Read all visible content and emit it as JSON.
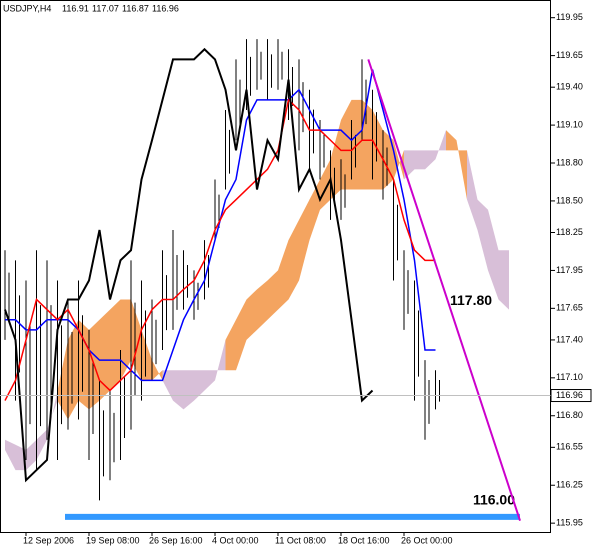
{
  "chart_data": {
    "type": "ichimoku",
    "symbol": "USDJPY,H4",
    "ohlc": [
      116.91,
      117.07,
      116.87,
      116.96
    ],
    "last": 116.96,
    "ylim": [
      115.88,
      120.09
    ],
    "yticks": [
      119.95,
      119.65,
      {
        "value": 119.4,
        "label": "119.40"
      },
      {
        "value": 119.1,
        "label": "119.10"
      },
      {
        "value": 118.8,
        "label": "118.80"
      },
      {
        "value": 118.5,
        "label": "118.50"
      },
      118.25,
      117.95,
      117.65,
      {
        "value": 117.4,
        "label": "117.40"
      },
      {
        "value": 117.1,
        "label": "117.10"
      },
      {
        "value": 116.8,
        "label": "116.80"
      },
      116.55,
      116.25,
      115.95
    ],
    "categories": [
      null,
      null,
      "12 Sep 2006",
      null,
      null,
      null,
      null,
      null,
      "19 Sep 08:00",
      null,
      null,
      null,
      null,
      null,
      "26 Sep 16:00",
      null,
      null,
      null,
      null,
      null,
      "4 Oct 00:00",
      null,
      null,
      null,
      null,
      null,
      "11 Oct 08:00",
      null,
      null,
      null,
      null,
      null,
      "18 Oct 16:00",
      null,
      null,
      null,
      null,
      null,
      "26 Oct 00:00",
      null,
      null,
      null,
      null,
      null,
      null,
      null,
      null,
      null,
      null,
      null
    ],
    "price": {
      "color": "#000000",
      "high": [
        118.11,
        118.03,
        117.87,
        118.11,
        118.03,
        117.87,
        117.72,
        117.87,
        117.48,
        117.08,
        117.0,
        117.32,
        118.03,
        117.87,
        117.72,
        118.11,
        118.27,
        118.11,
        117.95,
        118.19,
        118.67,
        119.22,
        119.62,
        119.78,
        119.78,
        119.78,
        119.78,
        119.7,
        119.62,
        119.38,
        119.14,
        118.9,
        118.83,
        119.14,
        119.62,
        119.38,
        119.06,
        118.67,
        118.11,
        117.87,
        117.24,
        117.16,
        null,
        null,
        null,
        null,
        null,
        null,
        null,
        null
      ],
      "low": [
        117.4,
        116.92,
        116.45,
        116.37,
        116.61,
        116.45,
        116.69,
        116.77,
        116.45,
        116.13,
        116.29,
        116.45,
        116.69,
        116.92,
        117.08,
        117.32,
        117.48,
        117.64,
        117.56,
        117.72,
        118.19,
        118.59,
        118.98,
        119.22,
        119.38,
        119.3,
        119.38,
        119.14,
        118.9,
        118.75,
        118.67,
        118.35,
        118.35,
        118.67,
        118.98,
        118.67,
        118.51,
        117.87,
        117.48,
        116.92,
        116.61,
        116.85,
        null,
        null,
        null,
        null,
        null,
        null,
        null,
        null
      ]
    },
    "cloud": {
      "up_color": "#f4a460",
      "down_color": "#d8bfd8",
      "span_a": [
        116.53,
        116.37,
        116.37,
        116.45,
        116.61,
        117.0,
        117.4,
        117.56,
        117.48,
        117.56,
        117.64,
        117.72,
        117.72,
        117.48,
        117.24,
        117.08,
        116.92,
        116.85,
        116.92,
        117.0,
        117.08,
        117.4,
        117.56,
        117.72,
        117.8,
        117.87,
        117.95,
        118.19,
        118.35,
        118.51,
        118.67,
        118.83,
        119.14,
        119.3,
        119.3,
        119.22,
        119.06,
        118.98,
        118.67,
        118.75,
        118.75,
        118.83,
        119.06,
        118.98,
        118.51,
        118.27,
        117.95,
        117.72,
        117.64,
        null
      ],
      "span_b": [
        116.61,
        116.57,
        116.53,
        116.61,
        116.69,
        116.92,
        116.77,
        116.92,
        116.85,
        116.92,
        117.0,
        117.08,
        117.24,
        117.08,
        117.08,
        117.16,
        117.16,
        117.16,
        117.16,
        117.16,
        117.16,
        117.16,
        117.16,
        117.4,
        117.48,
        117.56,
        117.64,
        117.72,
        117.87,
        118.19,
        118.43,
        118.51,
        118.59,
        118.59,
        118.59,
        118.59,
        118.59,
        118.67,
        118.9,
        118.9,
        118.9,
        118.9,
        118.9,
        118.9,
        118.9,
        118.51,
        118.43,
        118.11,
        118.11,
        null
      ]
    },
    "series": [
      {
        "color": "#0000ff",
        "values": [
          117.56,
          117.56,
          117.48,
          117.48,
          117.56,
          117.56,
          117.56,
          117.48,
          117.32,
          117.24,
          117.24,
          117.24,
          117.16,
          117.08,
          117.08,
          117.08,
          117.32,
          117.56,
          117.72,
          117.87,
          118.19,
          118.51,
          118.67,
          119.14,
          119.3,
          119.3,
          119.3,
          119.3,
          119.38,
          119.22,
          119.06,
          119.06,
          119.06,
          118.98,
          119.06,
          119.54,
          119.22,
          118.9,
          118.51,
          118.03,
          117.32,
          117.32,
          null,
          null,
          null,
          null,
          null,
          null,
          null,
          null
        ]
      },
      {
        "color": "#ff0000",
        "values": [
          116.92,
          117.08,
          117.4,
          117.72,
          117.64,
          117.56,
          117.64,
          117.48,
          117.32,
          117.08,
          117.0,
          117.08,
          117.16,
          117.48,
          117.64,
          117.72,
          117.72,
          117.8,
          117.87,
          118.03,
          118.27,
          118.43,
          118.51,
          118.59,
          118.67,
          118.75,
          118.9,
          119.3,
          119.22,
          119.06,
          119.06,
          118.98,
          118.9,
          118.9,
          118.98,
          118.98,
          118.83,
          118.67,
          118.35,
          118.11,
          118.03,
          118.03,
          null,
          null,
          null,
          null,
          null,
          null,
          null,
          null
        ]
      },
      {
        "color": "#000000",
        "values": [
          117.64,
          117.4,
          116.29,
          116.37,
          116.45,
          117.48,
          117.72,
          117.72,
          117.87,
          118.27,
          117.72,
          118.03,
          118.11,
          118.67,
          118.98,
          119.3,
          119.62,
          119.62,
          119.62,
          119.7,
          119.62,
          119.38,
          118.9,
          119.38,
          118.59,
          118.98,
          118.83,
          119.46,
          118.59,
          118.75,
          118.51,
          118.67,
          118.19,
          117.56,
          116.92,
          117.0,
          null,
          null,
          null,
          null,
          null,
          null,
          null,
          null,
          null,
          null,
          null,
          null,
          null,
          null
        ]
      }
    ],
    "trend": {
      "color": "#cc00cc",
      "x": [
        34.6,
        49.05
      ],
      "y": [
        119.62,
        115.97
      ],
      "value": 117.8,
      "label": "117.80"
    },
    "level": {
      "color": "#3399ff",
      "value": 116,
      "label": "116.00"
    }
  }
}
